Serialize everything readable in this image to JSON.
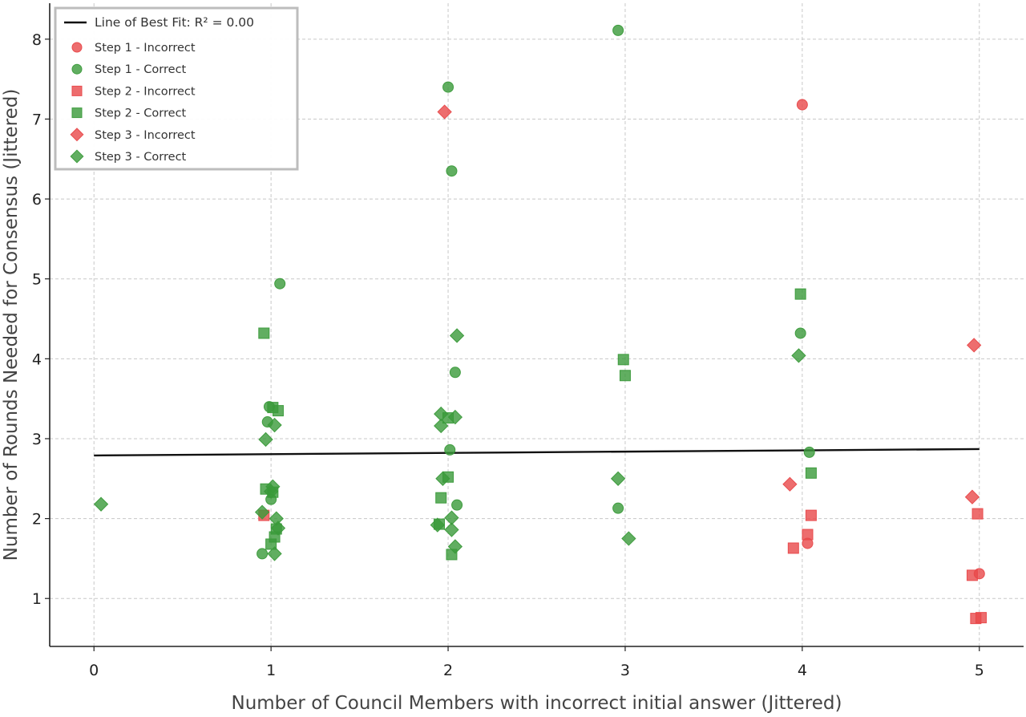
{
  "chart_data": {
    "type": "scatter",
    "xlabel": "Number of Council Members with incorrect initial answer (Jittered)",
    "ylabel": "Number of Rounds Needed for Consensus (Jittered)",
    "xlim": [
      -0.25,
      5.25
    ],
    "ylim": [
      0.4,
      8.45
    ],
    "xticks": [
      0,
      1,
      2,
      3,
      4,
      5
    ],
    "yticks": [
      1,
      2,
      3,
      4,
      5,
      6,
      7,
      8
    ],
    "grid": true,
    "legend_position": "top-left",
    "colors": {
      "incorrect": "#e8484a",
      "correct": "#3a9a3a",
      "fit_line": "#111111"
    },
    "fit_line": {
      "label_prefix": "Line of Best Fit: ",
      "label_math": "R² = 0.00",
      "x": [
        0,
        5
      ],
      "y": [
        2.79,
        2.87
      ]
    },
    "series": [
      {
        "name": "Step 1 - Incorrect",
        "marker": "circle",
        "status": "incorrect",
        "points": [
          [
            4.0,
            7.18
          ],
          [
            4.03,
            1.69
          ],
          [
            5.0,
            1.31
          ]
        ]
      },
      {
        "name": "Step 1 - Correct",
        "marker": "circle",
        "status": "correct",
        "points": [
          [
            1.05,
            4.94
          ],
          [
            0.99,
            3.4
          ],
          [
            0.98,
            3.21
          ],
          [
            1.0,
            2.24
          ],
          [
            0.95,
            1.56
          ],
          [
            2.0,
            7.4
          ],
          [
            2.02,
            6.35
          ],
          [
            2.04,
            3.83
          ],
          [
            2.01,
            2.86
          ],
          [
            2.05,
            2.17
          ],
          [
            2.96,
            8.11
          ],
          [
            2.96,
            2.13
          ],
          [
            3.99,
            4.32
          ],
          [
            4.04,
            2.83
          ]
        ]
      },
      {
        "name": "Step 2 - Incorrect",
        "marker": "square",
        "status": "incorrect",
        "points": [
          [
            0.96,
            2.04
          ],
          [
            3.95,
            1.63
          ],
          [
            4.03,
            1.8
          ],
          [
            4.05,
            2.04
          ],
          [
            4.96,
            1.29
          ],
          [
            4.98,
            0.75
          ],
          [
            5.01,
            0.76
          ],
          [
            4.99,
            2.06
          ]
        ]
      },
      {
        "name": "Step 2 - Correct",
        "marker": "square",
        "status": "correct",
        "points": [
          [
            0.96,
            4.32
          ],
          [
            1.01,
            3.39
          ],
          [
            1.04,
            3.35
          ],
          [
            0.97,
            2.37
          ],
          [
            1.01,
            2.33
          ],
          [
            1.03,
            1.87
          ],
          [
            1.02,
            1.77
          ],
          [
            1.0,
            1.68
          ],
          [
            2.0,
            3.26
          ],
          [
            2.0,
            2.52
          ],
          [
            1.96,
            2.26
          ],
          [
            1.95,
            1.93
          ],
          [
            2.02,
            1.55
          ],
          [
            2.99,
            3.99
          ],
          [
            3.0,
            3.79
          ],
          [
            3.99,
            4.81
          ],
          [
            4.05,
            2.57
          ]
        ]
      },
      {
        "name": "Step 3 - Incorrect",
        "marker": "diamond",
        "status": "incorrect",
        "points": [
          [
            1.98,
            7.09
          ],
          [
            3.93,
            2.43
          ],
          [
            4.97,
            4.17
          ],
          [
            4.96,
            2.27
          ]
        ]
      },
      {
        "name": "Step 3 - Correct",
        "marker": "diamond",
        "status": "correct",
        "points": [
          [
            0.04,
            2.18
          ],
          [
            1.02,
            3.17
          ],
          [
            0.97,
            2.99
          ],
          [
            1.01,
            2.4
          ],
          [
            1.0,
            2.34
          ],
          [
            0.95,
            2.08
          ],
          [
            1.03,
            2.0
          ],
          [
            1.04,
            1.88
          ],
          [
            1.02,
            1.56
          ],
          [
            2.05,
            4.29
          ],
          [
            1.96,
            3.31
          ],
          [
            2.04,
            3.27
          ],
          [
            1.96,
            3.16
          ],
          [
            1.97,
            2.5
          ],
          [
            1.94,
            1.92
          ],
          [
            2.02,
            2.01
          ],
          [
            2.02,
            1.86
          ],
          [
            2.04,
            1.65
          ],
          [
            2.96,
            2.5
          ],
          [
            3.02,
            1.75
          ],
          [
            3.98,
            4.04
          ]
        ]
      }
    ]
  }
}
